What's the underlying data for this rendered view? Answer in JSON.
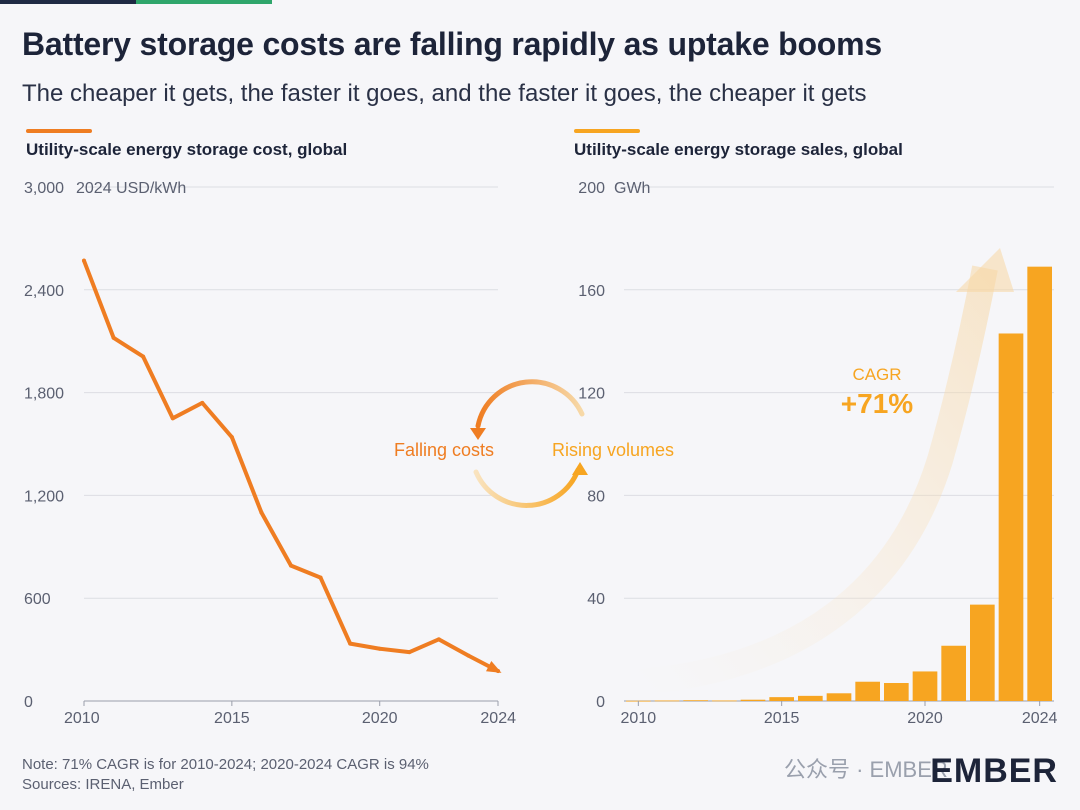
{
  "header": {
    "title": "Battery storage costs are falling rapidly as uptake booms",
    "subtitle": "The cheaper it gets, the faster it goes, and the faster it goes, the cheaper it gets"
  },
  "cycle": {
    "left_label": "Falling costs",
    "right_label": "Rising volumes"
  },
  "footer": {
    "note": "Note: 71% CAGR is for 2010-2024; 2020-2024 CAGR is 94%",
    "sources": "Sources: IRENA, Ember",
    "logo": "EMBER",
    "watermark": "公众号 · EMBER"
  },
  "colors": {
    "cost_line": "#ef7d22",
    "sales_bar": "#f7a521",
    "text_dark": "#1d2439",
    "gridline": "#dcdde3"
  },
  "chart_data": [
    {
      "type": "line",
      "title": "Utility-scale energy storage cost, global",
      "unit_label": "2024 USD/kWh",
      "x": [
        2010,
        2011,
        2012,
        2013,
        2014,
        2015,
        2016,
        2017,
        2018,
        2019,
        2020,
        2021,
        2022,
        2023,
        2024
      ],
      "values": [
        2570,
        2120,
        2010,
        1650,
        1740,
        1540,
        1100,
        790,
        720,
        335,
        305,
        285,
        360,
        265,
        175
      ],
      "x_ticks": [
        2010,
        2015,
        2020,
        2024
      ],
      "y_ticks": [
        0,
        600,
        1200,
        1800,
        2400,
        3000
      ],
      "y_tick_labels": [
        "0",
        "600",
        "1,200",
        "1,800",
        "2,400",
        "3,000"
      ],
      "ylim": [
        0,
        3000
      ],
      "grid": true,
      "arrow_at_end": true
    },
    {
      "type": "bar",
      "title": "Utility-scale energy storage sales, global",
      "unit_label": "GWh",
      "categories": [
        2010,
        2011,
        2012,
        2013,
        2014,
        2015,
        2016,
        2017,
        2018,
        2019,
        2020,
        2021,
        2022,
        2023,
        2024
      ],
      "values": [
        0.1,
        0.2,
        0.3,
        0.2,
        0.5,
        1.5,
        2,
        3,
        7.5,
        7,
        11.5,
        21.5,
        37.5,
        143,
        169
      ],
      "x_ticks": [
        2010,
        2015,
        2020,
        2024
      ],
      "y_ticks": [
        0,
        40,
        80,
        120,
        160,
        200
      ],
      "ylim": [
        0,
        200
      ],
      "grid": true,
      "annotation": {
        "label": "CAGR",
        "value": "+71%"
      }
    }
  ]
}
